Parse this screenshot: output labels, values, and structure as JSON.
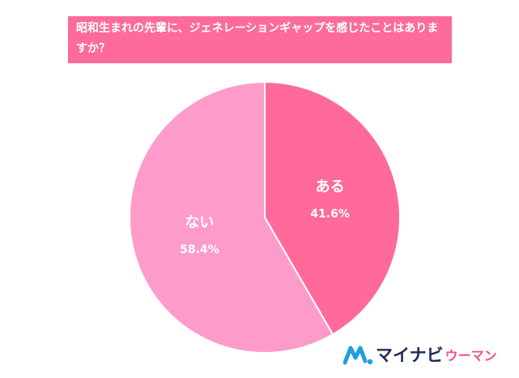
{
  "chart_data": {
    "type": "pie",
    "title": "昭和生まれの先輩に、ジェネレーションギャップを感じたことはありますか？",
    "categories": [
      "ある",
      "ない"
    ],
    "values": [
      41.6,
      58.4
    ],
    "value_labels": [
      "41.6%",
      "58.4%"
    ],
    "colors": [
      "#ff6a9a",
      "#fd9ccb"
    ],
    "title_background": "#fc6b9b",
    "legend": "none"
  },
  "logo": {
    "main": "マイナビ",
    "sub": "ウーマン",
    "icon": "mynavi-logo-icon"
  }
}
